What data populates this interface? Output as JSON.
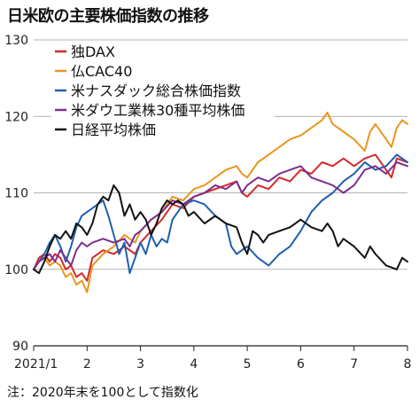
{
  "title": "日米欧の主要株価指数の推移",
  "note": "注：2020年末を100として指数化",
  "chart_data": {
    "type": "line",
    "title": "日米欧の主要株価指数の推移",
    "xlabel": "",
    "ylabel": "",
    "xlim": [
      1,
      8
    ],
    "ylim": [
      90,
      130
    ],
    "x_ticks": [
      {
        "value": 1,
        "label": "2021/1"
      },
      {
        "value": 2,
        "label": "2"
      },
      {
        "value": 3,
        "label": "3"
      },
      {
        "value": 4,
        "label": "4"
      },
      {
        "value": 5,
        "label": "5"
      },
      {
        "value": 6,
        "label": "6"
      },
      {
        "value": 7,
        "label": "7"
      },
      {
        "value": 8,
        "label": "8"
      }
    ],
    "y_ticks": [
      90,
      100,
      110,
      120,
      130
    ],
    "grid": "horizontal",
    "legend_position": "top-left",
    "series": [
      {
        "name": "独DAX",
        "color": "#d42a2a",
        "points": [
          [
            1.0,
            100.0
          ],
          [
            1.1,
            101.5
          ],
          [
            1.2,
            102.0
          ],
          [
            1.3,
            101.0
          ],
          [
            1.4,
            102.0
          ],
          [
            1.5,
            101.5
          ],
          [
            1.6,
            100.0
          ],
          [
            1.7,
            100.5
          ],
          [
            1.8,
            99.0
          ],
          [
            1.9,
            99.5
          ],
          [
            2.0,
            98.5
          ],
          [
            2.1,
            101.5
          ],
          [
            2.3,
            102.5
          ],
          [
            2.5,
            102.0
          ],
          [
            2.7,
            103.0
          ],
          [
            2.9,
            102.0
          ],
          [
            3.0,
            103.5
          ],
          [
            3.2,
            105.0
          ],
          [
            3.4,
            106.5
          ],
          [
            3.6,
            108.5
          ],
          [
            3.8,
            108.0
          ],
          [
            4.0,
            109.5
          ],
          [
            4.2,
            110.0
          ],
          [
            4.4,
            110.5
          ],
          [
            4.6,
            111.0
          ],
          [
            4.8,
            111.5
          ],
          [
            4.9,
            110.0
          ],
          [
            5.0,
            109.5
          ],
          [
            5.2,
            111.0
          ],
          [
            5.4,
            110.5
          ],
          [
            5.6,
            112.0
          ],
          [
            5.8,
            111.5
          ],
          [
            6.0,
            113.0
          ],
          [
            6.2,
            112.5
          ],
          [
            6.4,
            114.0
          ],
          [
            6.6,
            113.5
          ],
          [
            6.8,
            114.5
          ],
          [
            7.0,
            113.5
          ],
          [
            7.2,
            114.5
          ],
          [
            7.4,
            115.0
          ],
          [
            7.6,
            113.0
          ],
          [
            7.7,
            112.0
          ],
          [
            7.8,
            114.5
          ],
          [
            8.0,
            114.0
          ]
        ]
      },
      {
        "name": "仏CAC40",
        "color": "#e8961e",
        "points": [
          [
            1.0,
            100.0
          ],
          [
            1.1,
            101.0
          ],
          [
            1.2,
            101.5
          ],
          [
            1.3,
            100.5
          ],
          [
            1.4,
            101.0
          ],
          [
            1.5,
            100.5
          ],
          [
            1.6,
            99.0
          ],
          [
            1.7,
            99.5
          ],
          [
            1.8,
            98.0
          ],
          [
            1.9,
            98.5
          ],
          [
            2.0,
            97.0
          ],
          [
            2.1,
            100.5
          ],
          [
            2.3,
            102.0
          ],
          [
            2.5,
            103.0
          ],
          [
            2.7,
            104.5
          ],
          [
            2.9,
            103.5
          ],
          [
            3.0,
            105.0
          ],
          [
            3.2,
            106.5
          ],
          [
            3.4,
            107.5
          ],
          [
            3.6,
            109.5
          ],
          [
            3.8,
            109.0
          ],
          [
            4.0,
            110.5
          ],
          [
            4.2,
            111.0
          ],
          [
            4.4,
            112.0
          ],
          [
            4.6,
            113.0
          ],
          [
            4.8,
            113.5
          ],
          [
            4.9,
            112.5
          ],
          [
            5.0,
            112.0
          ],
          [
            5.2,
            114.0
          ],
          [
            5.4,
            115.0
          ],
          [
            5.6,
            116.0
          ],
          [
            5.8,
            117.0
          ],
          [
            6.0,
            117.5
          ],
          [
            6.2,
            118.5
          ],
          [
            6.4,
            119.5
          ],
          [
            6.5,
            120.5
          ],
          [
            6.6,
            119.0
          ],
          [
            6.8,
            118.0
          ],
          [
            7.0,
            117.0
          ],
          [
            7.2,
            115.5
          ],
          [
            7.3,
            118.0
          ],
          [
            7.4,
            119.0
          ],
          [
            7.6,
            117.0
          ],
          [
            7.7,
            116.0
          ],
          [
            7.8,
            118.5
          ],
          [
            7.9,
            119.5
          ],
          [
            8.0,
            119.0
          ]
        ]
      },
      {
        "name": "米ナスダック総合株価指数",
        "color": "#1f5fae",
        "points": [
          [
            1.0,
            100.0
          ],
          [
            1.1,
            101.0
          ],
          [
            1.2,
            102.0
          ],
          [
            1.3,
            103.5
          ],
          [
            1.4,
            104.5
          ],
          [
            1.5,
            103.0
          ],
          [
            1.6,
            101.0
          ],
          [
            1.7,
            103.0
          ],
          [
            1.8,
            105.5
          ],
          [
            1.9,
            107.0
          ],
          [
            2.0,
            107.5
          ],
          [
            2.1,
            108.0
          ],
          [
            2.3,
            109.0
          ],
          [
            2.4,
            107.0
          ],
          [
            2.5,
            104.5
          ],
          [
            2.6,
            102.0
          ],
          [
            2.7,
            103.5
          ],
          [
            2.8,
            99.5
          ],
          [
            2.9,
            101.5
          ],
          [
            3.0,
            103.5
          ],
          [
            3.1,
            102.0
          ],
          [
            3.2,
            104.5
          ],
          [
            3.3,
            103.0
          ],
          [
            3.4,
            104.0
          ],
          [
            3.5,
            103.5
          ],
          [
            3.6,
            106.5
          ],
          [
            3.8,
            108.5
          ],
          [
            4.0,
            109.0
          ],
          [
            4.2,
            108.5
          ],
          [
            4.4,
            107.0
          ],
          [
            4.6,
            106.0
          ],
          [
            4.7,
            103.0
          ],
          [
            4.8,
            102.0
          ],
          [
            4.9,
            102.5
          ],
          [
            5.0,
            103.0
          ],
          [
            5.2,
            101.5
          ],
          [
            5.4,
            100.5
          ],
          [
            5.6,
            102.0
          ],
          [
            5.8,
            103.0
          ],
          [
            6.0,
            105.0
          ],
          [
            6.2,
            107.5
          ],
          [
            6.4,
            109.0
          ],
          [
            6.6,
            110.0
          ],
          [
            6.8,
            111.5
          ],
          [
            7.0,
            112.5
          ],
          [
            7.2,
            114.0
          ],
          [
            7.4,
            113.0
          ],
          [
            7.6,
            113.5
          ],
          [
            7.8,
            115.0
          ],
          [
            8.0,
            114.0
          ]
        ]
      },
      {
        "name": "米ダウ工業株30種平均株価",
        "color": "#7d2e8e",
        "points": [
          [
            1.0,
            100.0
          ],
          [
            1.1,
            101.0
          ],
          [
            1.2,
            101.5
          ],
          [
            1.3,
            102.0
          ],
          [
            1.4,
            101.0
          ],
          [
            1.5,
            102.5
          ],
          [
            1.6,
            101.5
          ],
          [
            1.7,
            100.5
          ],
          [
            1.8,
            102.5
          ],
          [
            1.9,
            103.5
          ],
          [
            2.0,
            103.0
          ],
          [
            2.1,
            103.5
          ],
          [
            2.3,
            104.0
          ],
          [
            2.5,
            103.5
          ],
          [
            2.7,
            104.0
          ],
          [
            2.8,
            103.0
          ],
          [
            2.9,
            104.5
          ],
          [
            3.0,
            105.0
          ],
          [
            3.2,
            106.5
          ],
          [
            3.4,
            107.5
          ],
          [
            3.6,
            109.0
          ],
          [
            3.8,
            108.5
          ],
          [
            4.0,
            109.5
          ],
          [
            4.2,
            110.0
          ],
          [
            4.4,
            111.0
          ],
          [
            4.6,
            110.5
          ],
          [
            4.8,
            111.5
          ],
          [
            4.9,
            110.0
          ],
          [
            5.0,
            111.0
          ],
          [
            5.2,
            112.0
          ],
          [
            5.4,
            111.5
          ],
          [
            5.6,
            112.5
          ],
          [
            5.8,
            113.0
          ],
          [
            6.0,
            113.5
          ],
          [
            6.2,
            112.0
          ],
          [
            6.4,
            111.5
          ],
          [
            6.6,
            111.0
          ],
          [
            6.8,
            110.0
          ],
          [
            7.0,
            111.0
          ],
          [
            7.2,
            113.0
          ],
          [
            7.4,
            113.5
          ],
          [
            7.6,
            112.5
          ],
          [
            7.8,
            114.0
          ],
          [
            8.0,
            113.5
          ]
        ]
      },
      {
        "name": "日経平均株価",
        "color": "#111111",
        "points": [
          [
            1.0,
            100.0
          ],
          [
            1.1,
            99.5
          ],
          [
            1.2,
            101.0
          ],
          [
            1.3,
            103.0
          ],
          [
            1.4,
            104.5
          ],
          [
            1.5,
            104.0
          ],
          [
            1.6,
            105.0
          ],
          [
            1.7,
            104.0
          ],
          [
            1.8,
            106.0
          ],
          [
            1.9,
            105.5
          ],
          [
            2.0,
            104.5
          ],
          [
            2.1,
            106.0
          ],
          [
            2.2,
            108.5
          ],
          [
            2.3,
            109.5
          ],
          [
            2.4,
            109.0
          ],
          [
            2.5,
            111.0
          ],
          [
            2.6,
            110.0
          ],
          [
            2.7,
            107.0
          ],
          [
            2.8,
            108.5
          ],
          [
            2.9,
            106.5
          ],
          [
            3.0,
            107.5
          ],
          [
            3.1,
            106.5
          ],
          [
            3.2,
            104.5
          ],
          [
            3.3,
            106.0
          ],
          [
            3.4,
            108.0
          ],
          [
            3.5,
            109.0
          ],
          [
            3.6,
            108.5
          ],
          [
            3.7,
            109.0
          ],
          [
            3.8,
            108.5
          ],
          [
            3.9,
            107.0
          ],
          [
            4.0,
            107.5
          ],
          [
            4.2,
            106.0
          ],
          [
            4.4,
            107.0
          ],
          [
            4.6,
            106.0
          ],
          [
            4.8,
            105.5
          ],
          [
            4.9,
            103.5
          ],
          [
            5.0,
            102.0
          ],
          [
            5.1,
            105.0
          ],
          [
            5.2,
            104.5
          ],
          [
            5.3,
            103.5
          ],
          [
            5.4,
            104.5
          ],
          [
            5.6,
            105.0
          ],
          [
            5.8,
            105.5
          ],
          [
            6.0,
            106.5
          ],
          [
            6.2,
            105.5
          ],
          [
            6.4,
            105.0
          ],
          [
            6.5,
            106.0
          ],
          [
            6.6,
            105.0
          ],
          [
            6.7,
            103.0
          ],
          [
            6.8,
            104.0
          ],
          [
            7.0,
            103.0
          ],
          [
            7.2,
            101.5
          ],
          [
            7.3,
            103.0
          ],
          [
            7.4,
            102.0
          ],
          [
            7.6,
            100.5
          ],
          [
            7.8,
            100.0
          ],
          [
            7.9,
            101.5
          ],
          [
            8.0,
            101.0
          ]
        ]
      }
    ]
  }
}
